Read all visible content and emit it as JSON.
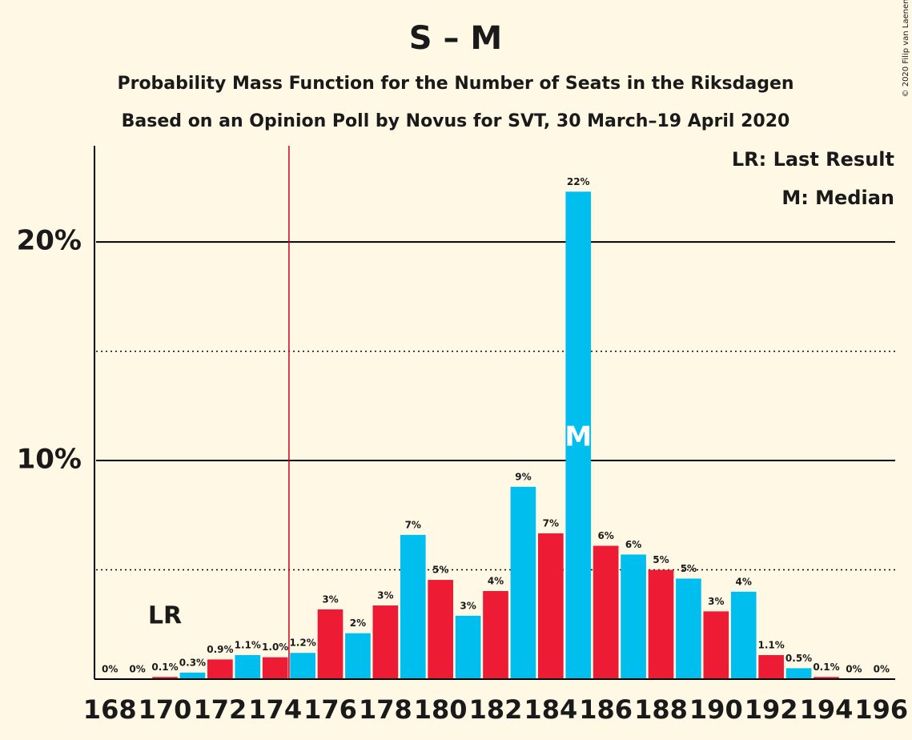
{
  "chart_data": {
    "type": "bar",
    "title": "S – M",
    "subtitle": "Probability Mass Function for the Number of Seats in the Riksdagen",
    "subtitle2": "Based on an Opinion Poll by Novus for SVT, 30 March–19 April 2020",
    "copyright": "© 2020 Filip van Laenen",
    "legend": [
      "LR: Last Result",
      "M: Median"
    ],
    "x": [
      168,
      169,
      170,
      171,
      172,
      173,
      174,
      175,
      176,
      177,
      178,
      179,
      180,
      181,
      182,
      183,
      184,
      185,
      186,
      187,
      188,
      189,
      190,
      191,
      192,
      193,
      194,
      195,
      196
    ],
    "values": [
      0,
      0,
      0.1,
      0.3,
      0.9,
      1.1,
      1.0,
      1.2,
      3.19,
      2.1,
      3.37,
      6.6,
      4.54,
      2.9,
      4.03,
      8.8,
      6.67,
      22.3,
      6.1,
      5.7,
      5.0,
      4.6,
      3.1,
      4.0,
      1.1,
      0.5,
      0.1,
      0,
      0
    ],
    "value_labels": [
      "0%",
      "0%",
      "0.1%",
      "0.3%",
      "0.9%",
      "1.1%",
      "1.0%",
      "1.2%",
      "3%",
      "2%",
      "3%",
      "7%",
      "5%",
      "3%",
      "4%",
      "9%",
      "7%",
      "22%",
      "6%",
      "6%",
      "5%",
      "5%",
      "3%",
      "4%",
      "1.1%",
      "0.5%",
      "0.1%",
      "0%",
      "0%"
    ],
    "colors": [
      "#00bfef",
      "#ed1b34"
    ],
    "xlim": [
      167.5,
      196.5
    ],
    "xticks": [
      168,
      170,
      172,
      174,
      176,
      178,
      180,
      182,
      184,
      186,
      188,
      190,
      192,
      194,
      196
    ],
    "ylim": [
      0,
      24.4
    ],
    "yticks": [
      {
        "value": 10,
        "label": "10%"
      },
      {
        "value": 20,
        "label": "20%"
      }
    ],
    "minor_yticks": [
      5,
      15
    ],
    "majority_line": 174.5,
    "last_result": {
      "x": 170,
      "label": "LR"
    },
    "median": {
      "x": 185,
      "label": "M"
    }
  }
}
